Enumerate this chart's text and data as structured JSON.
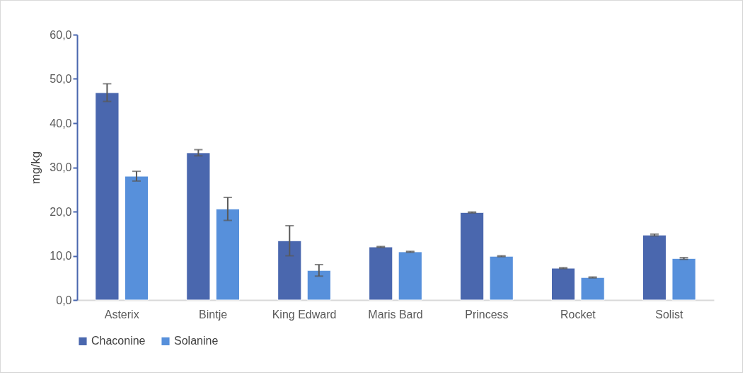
{
  "chart_data": {
    "type": "bar",
    "ylabel": "mg/kg",
    "categories": [
      "Asterix",
      "Bintje",
      "King Edward",
      "Maris Bard",
      "Princess",
      "Rocket",
      "Solist"
    ],
    "series": [
      {
        "name": "Chaconine",
        "color": "#4a67ae",
        "values": [
          46.9,
          33.3,
          13.4,
          12.0,
          19.8,
          7.2,
          14.7
        ],
        "errors": [
          2.0,
          0.7,
          3.4,
          0.1,
          0.1,
          0.1,
          0.2
        ]
      },
      {
        "name": "Solanine",
        "color": "#5790db",
        "values": [
          28.0,
          20.6,
          6.7,
          10.9,
          9.9,
          5.1,
          9.4
        ],
        "errors": [
          1.1,
          2.6,
          1.3,
          0.1,
          0.1,
          0.1,
          0.2
        ]
      }
    ],
    "ylim": [
      0,
      60
    ],
    "yticks": [
      {
        "value": 0,
        "label": "0,0"
      },
      {
        "value": 10,
        "label": "10,0"
      },
      {
        "value": 20,
        "label": "20,0"
      },
      {
        "value": 30,
        "label": "30,0"
      },
      {
        "value": 40,
        "label": "40,0"
      },
      {
        "value": 50,
        "label": "50,0"
      },
      {
        "value": 60,
        "label": "60,0"
      }
    ],
    "grid": false,
    "legend": "bottom"
  }
}
